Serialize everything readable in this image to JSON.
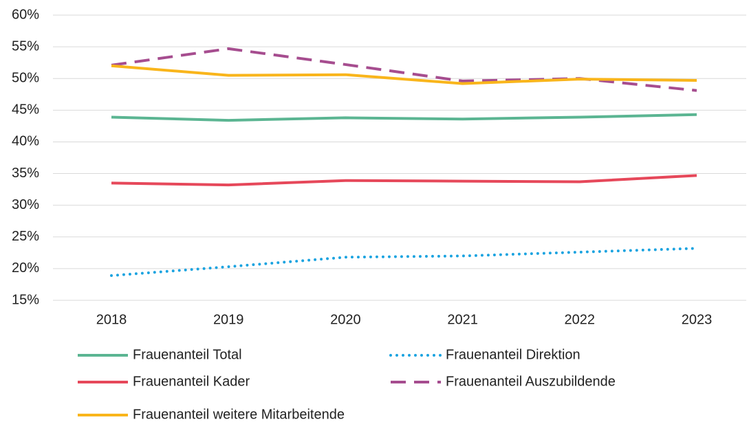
{
  "chart_data": {
    "type": "line",
    "categories": [
      "2018",
      "2019",
      "2020",
      "2021",
      "2022",
      "2023"
    ],
    "series": [
      {
        "name": "Frauenanteil Total",
        "color": "#5bb592",
        "style": "solid",
        "values": [
          43.9,
          43.4,
          43.8,
          43.6,
          43.9,
          44.3
        ]
      },
      {
        "name": "Frauenanteil Direktion",
        "color": "#1aa3e0",
        "style": "dotted",
        "values": [
          18.9,
          20.3,
          21.8,
          22.0,
          22.6,
          23.2
        ]
      },
      {
        "name": "Frauenanteil Kader",
        "color": "#e6485a",
        "style": "solid",
        "values": [
          33.5,
          33.2,
          33.9,
          33.8,
          33.7,
          34.7
        ]
      },
      {
        "name": "Frauenanteil Auszubildende",
        "color": "#a64d8f",
        "style": "dashed",
        "values": [
          52.1,
          54.7,
          52.2,
          49.6,
          50.0,
          48.1
        ]
      },
      {
        "name": "Frauenanteil weitere Mitarbeitende",
        "color": "#f9b51b",
        "style": "solid",
        "values": [
          52.0,
          50.5,
          50.6,
          49.2,
          49.9,
          49.7
        ]
      }
    ],
    "ylim": [
      15,
      60
    ],
    "yticks": [
      {
        "value": 15,
        "label": "15%"
      },
      {
        "value": 20,
        "label": "20%"
      },
      {
        "value": 25,
        "label": "25%"
      },
      {
        "value": 30,
        "label": "30%"
      },
      {
        "value": 35,
        "label": "35%"
      },
      {
        "value": 40,
        "label": "40%"
      },
      {
        "value": 45,
        "label": "45%"
      },
      {
        "value": 50,
        "label": "50%"
      },
      {
        "value": 55,
        "label": "55%"
      },
      {
        "value": 60,
        "label": "60%"
      }
    ],
    "grid": true,
    "legend": "bottom"
  }
}
